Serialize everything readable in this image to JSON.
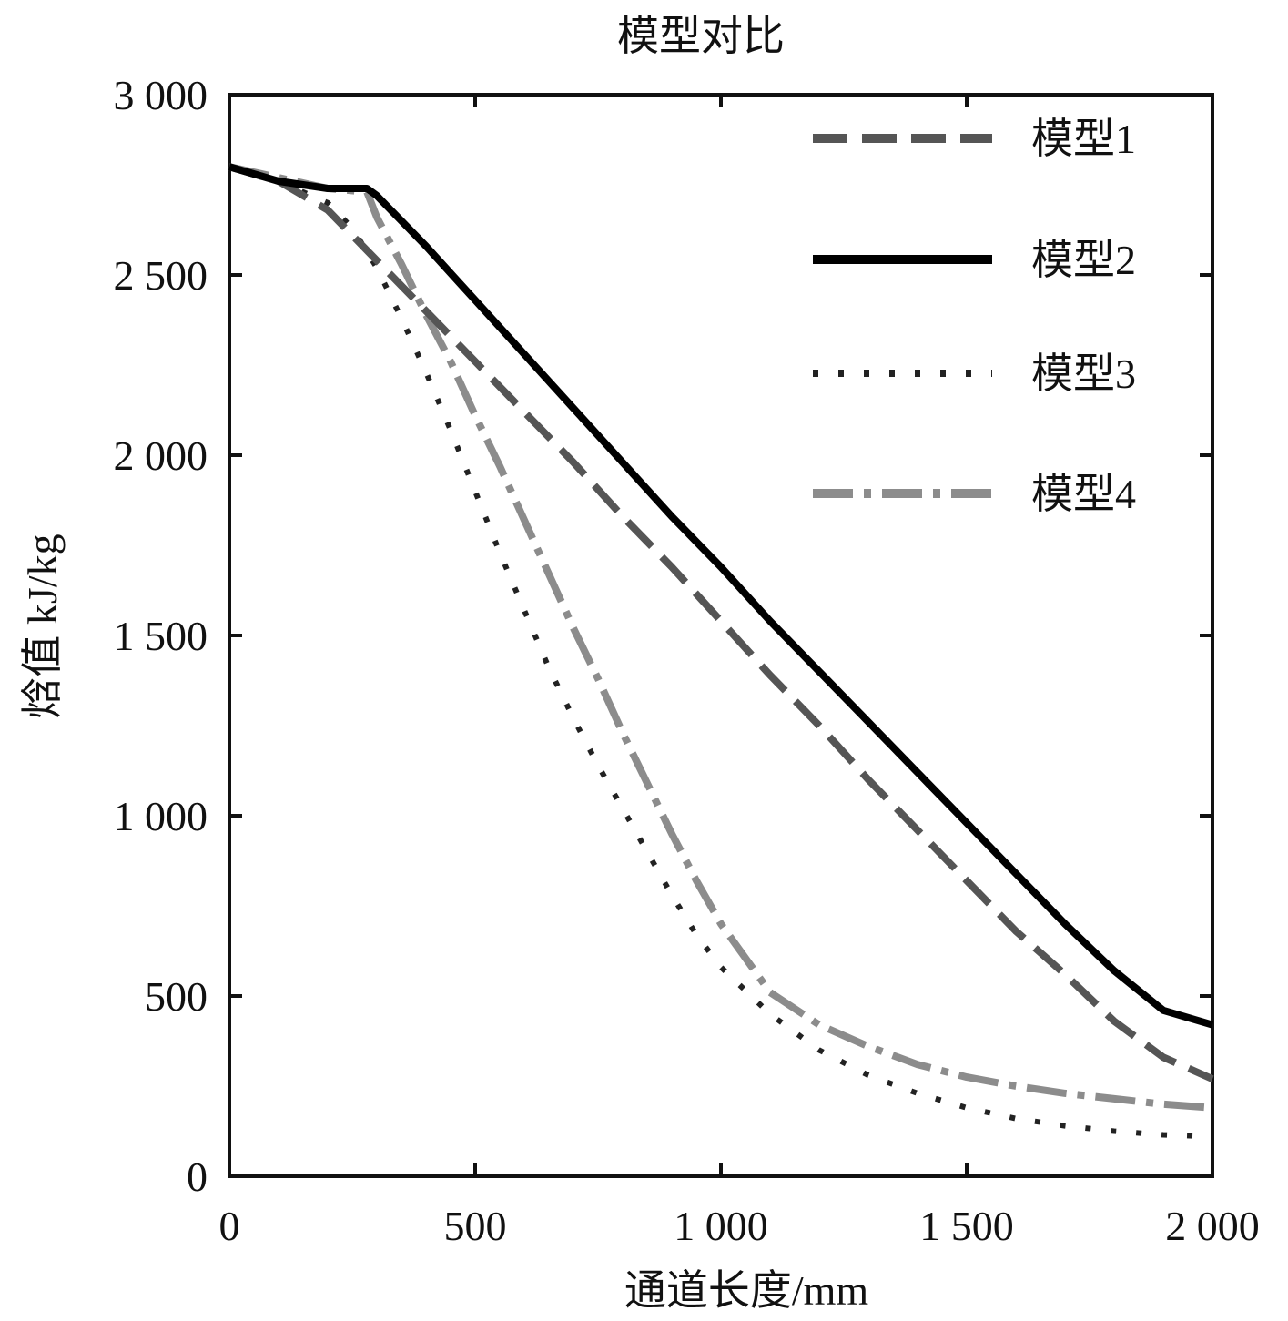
{
  "chart_data": {
    "type": "line",
    "title": "模型对比",
    "xlabel": "通道长度/mm",
    "ylabel": "焓值 kJ/kg",
    "xlim": [
      0,
      2000
    ],
    "ylim": [
      0,
      3000
    ],
    "x_ticks": [
      0,
      500,
      1000,
      1500,
      2000
    ],
    "x_tick_labels": [
      "0",
      "500",
      "1 000",
      "1 500",
      "2 000"
    ],
    "y_ticks": [
      0,
      500,
      1000,
      1500,
      2000,
      2500,
      3000
    ],
    "y_tick_labels": [
      "0",
      "500",
      "1 000",
      "1 500",
      "2 000",
      "2 500",
      "3 000"
    ],
    "grid": false,
    "legend_position": "top-right",
    "series": [
      {
        "name": "模型1",
        "style": "dashed",
        "color": "#555555",
        "x": [
          0,
          100,
          200,
          300,
          400,
          500,
          600,
          700,
          800,
          900,
          1000,
          1100,
          1200,
          1300,
          1400,
          1500,
          1600,
          1700,
          1800,
          1900,
          2000
        ],
        "y": [
          2800,
          2760,
          2680,
          2540,
          2400,
          2260,
          2120,
          1980,
          1830,
          1690,
          1540,
          1390,
          1250,
          1100,
          960,
          820,
          680,
          560,
          430,
          330,
          270
        ]
      },
      {
        "name": "模型2",
        "style": "solid",
        "color": "#000000",
        "x": [
          0,
          100,
          200,
          280,
          300,
          400,
          500,
          600,
          700,
          800,
          900,
          1000,
          1100,
          1200,
          1300,
          1400,
          1500,
          1600,
          1700,
          1800,
          1900,
          2000
        ],
        "y": [
          2800,
          2760,
          2740,
          2740,
          2720,
          2580,
          2430,
          2280,
          2130,
          1980,
          1830,
          1690,
          1540,
          1400,
          1260,
          1120,
          980,
          840,
          700,
          570,
          460,
          420
        ]
      },
      {
        "name": "模型3",
        "style": "dotted",
        "color": "#222222",
        "x": [
          0,
          100,
          200,
          250,
          300,
          350,
          400,
          450,
          500,
          550,
          600,
          650,
          700,
          750,
          800,
          850,
          900,
          950,
          1000,
          1100,
          1200,
          1300,
          1400,
          1500,
          1600,
          1700,
          1800,
          1900,
          2000
        ],
        "y": [
          2800,
          2760,
          2700,
          2630,
          2520,
          2380,
          2230,
          2070,
          1900,
          1730,
          1570,
          1410,
          1270,
          1140,
          1020,
          900,
          780,
          670,
          580,
          450,
          350,
          280,
          230,
          190,
          160,
          140,
          125,
          115,
          110
        ]
      },
      {
        "name": "模型4",
        "style": "dashdot",
        "color": "#8c8c8c",
        "x": [
          0,
          100,
          200,
          280,
          300,
          350,
          400,
          450,
          500,
          550,
          600,
          650,
          700,
          750,
          800,
          850,
          900,
          950,
          1000,
          1100,
          1200,
          1300,
          1400,
          1500,
          1600,
          1700,
          1800,
          1900,
          2000
        ],
        "y": [
          2800,
          2770,
          2740,
          2730,
          2660,
          2530,
          2390,
          2260,
          2110,
          1970,
          1820,
          1670,
          1520,
          1380,
          1230,
          1090,
          950,
          820,
          700,
          510,
          420,
          360,
          310,
          275,
          250,
          230,
          215,
          200,
          190
        ]
      }
    ]
  }
}
